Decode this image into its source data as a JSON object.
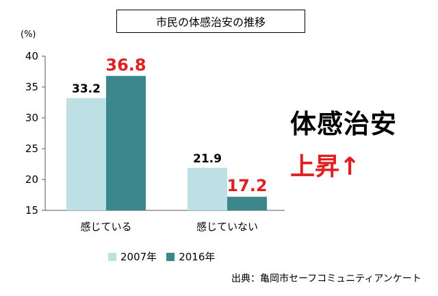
{
  "title": "市民の体感治安の推移",
  "callout": {
    "title": "体感治安",
    "rise": "上昇↑"
  },
  "source": "出典：亀岡市セーフコミュニティアンケート",
  "chart_data": {
    "type": "bar",
    "yunit": "(%)",
    "ylim": [
      15,
      40
    ],
    "yticks": [
      15,
      20,
      25,
      30,
      35,
      40
    ],
    "categories": [
      "感じている",
      "感じていない"
    ],
    "series": [
      {
        "name": "2007年",
        "values": [
          33.2,
          21.9
        ],
        "color": "#bde0e4",
        "label_color": "#000000"
      },
      {
        "name": "2016年",
        "values": [
          36.8,
          17.2
        ],
        "color": "#3b878c",
        "label_color": "#e02020"
      }
    ],
    "value_labels": [
      [
        "33.2",
        "21.9"
      ],
      [
        "36.8",
        "17.2"
      ]
    ],
    "grid": false,
    "legend_position": "bottom"
  }
}
